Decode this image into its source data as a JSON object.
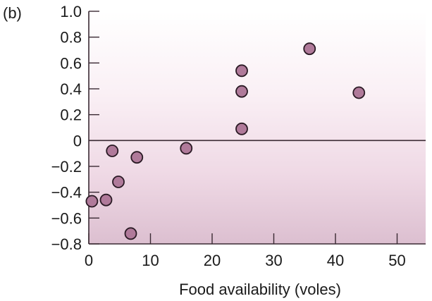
{
  "panel_label": "(b)",
  "chart_data": {
    "type": "scatter",
    "title": "",
    "xlabel": "Food availability (voles)",
    "ylabel": "",
    "xlim": [
      0,
      55
    ],
    "ylim": [
      -0.8,
      1.0
    ],
    "x_ticks": [
      0,
      10,
      20,
      30,
      40,
      50
    ],
    "y_ticks": [
      1.0,
      0.8,
      0.6,
      0.4,
      0.2,
      0,
      -0.2,
      -0.4,
      -0.6,
      -0.8
    ],
    "x_tick_labels": [
      "0",
      "10",
      "20",
      "30",
      "40",
      "50"
    ],
    "y_tick_labels": [
      "1.0",
      "0.8",
      "0.6",
      "0.4",
      "0.2",
      "0",
      "−0.2",
      "−0.4",
      "−0.6",
      "−0.8"
    ],
    "zero_line": true,
    "grid": false,
    "marker_fill": "#b07a9a",
    "marker_edge": "#2a1a24",
    "points": [
      {
        "x": 0.5,
        "y": -0.47
      },
      {
        "x": 2.8,
        "y": -0.46
      },
      {
        "x": 3.8,
        "y": -0.08
      },
      {
        "x": 4.8,
        "y": -0.32
      },
      {
        "x": 6.8,
        "y": -0.72
      },
      {
        "x": 7.8,
        "y": -0.13
      },
      {
        "x": 15.8,
        "y": -0.06
      },
      {
        "x": 24.8,
        "y": 0.54
      },
      {
        "x": 24.8,
        "y": 0.38
      },
      {
        "x": 24.8,
        "y": 0.09
      },
      {
        "x": 35.8,
        "y": 0.71
      },
      {
        "x": 43.8,
        "y": 0.37
      }
    ]
  }
}
